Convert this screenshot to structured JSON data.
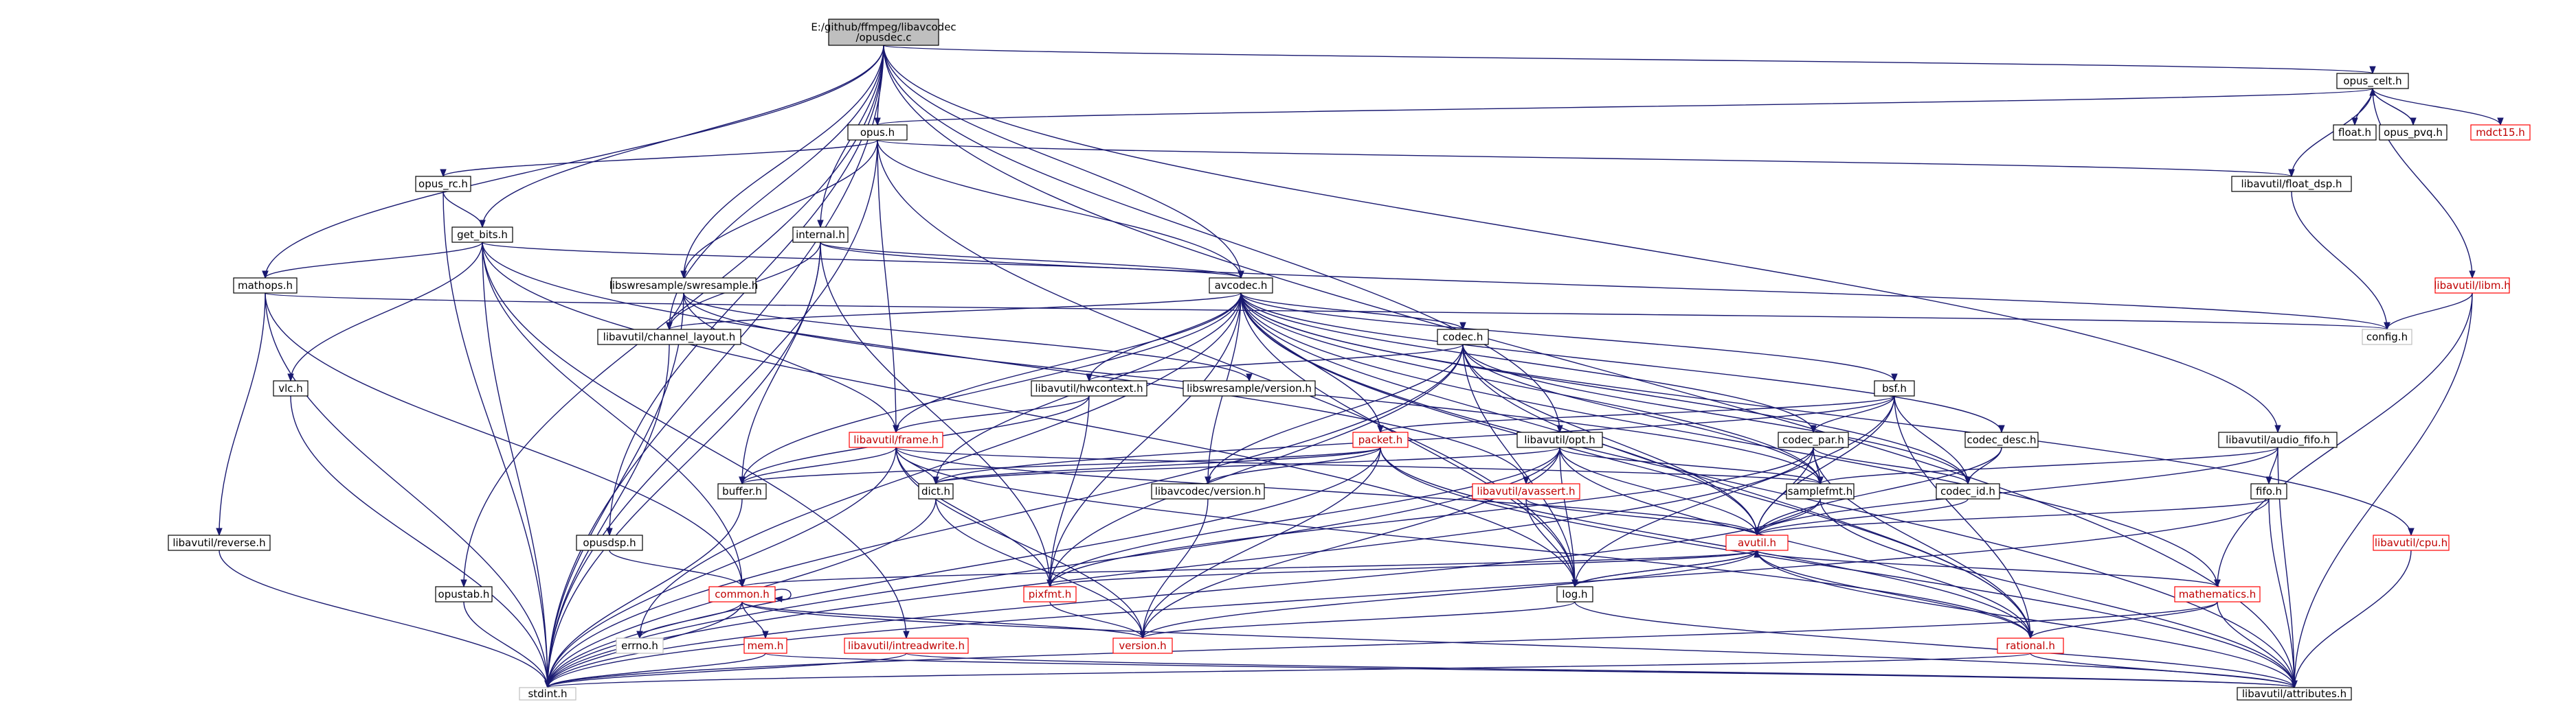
{
  "colors": {
    "edge": "#191970",
    "node_border": "#000000",
    "incomplete_border": "#ff0000",
    "root_fill": "#bfbfbf",
    "gray_border": "#bfbfbf",
    "background": "#ffffff"
  },
  "nodes": [
    {
      "id": "root",
      "lines": [
        "E:/github/ffmpeg/libavcodec",
        "/opusdec.c"
      ],
      "kind": "root"
    },
    {
      "id": "opus_celt",
      "lines": [
        "opus_celt.h"
      ],
      "kind": "normal"
    },
    {
      "id": "float",
      "lines": [
        "float.h"
      ],
      "kind": "normal"
    },
    {
      "id": "opus_pvq",
      "lines": [
        "opus_pvq.h"
      ],
      "kind": "normal"
    },
    {
      "id": "mdct15",
      "lines": [
        "mdct15.h"
      ],
      "kind": "incomplete"
    },
    {
      "id": "opus",
      "lines": [
        "opus.h"
      ],
      "kind": "normal"
    },
    {
      "id": "float_dsp",
      "lines": [
        "libavutil/float_dsp.h"
      ],
      "kind": "normal"
    },
    {
      "id": "libm",
      "lines": [
        "libavutil/libm.h"
      ],
      "kind": "incomplete"
    },
    {
      "id": "config",
      "lines": [
        "config.h"
      ],
      "kind": "gray"
    },
    {
      "id": "opus_rc",
      "lines": [
        "opus_rc.h"
      ],
      "kind": "normal"
    },
    {
      "id": "internal",
      "lines": [
        "internal.h"
      ],
      "kind": "normal"
    },
    {
      "id": "get_bits",
      "lines": [
        "get_bits.h"
      ],
      "kind": "normal"
    },
    {
      "id": "mathops",
      "lines": [
        "mathops.h"
      ],
      "kind": "normal"
    },
    {
      "id": "swresample",
      "lines": [
        "libswresample/swresample.h"
      ],
      "kind": "normal"
    },
    {
      "id": "avcodec",
      "lines": [
        "avcodec.h"
      ],
      "kind": "normal"
    },
    {
      "id": "channel_layout",
      "lines": [
        "libavutil/channel_layout.h"
      ],
      "kind": "normal"
    },
    {
      "id": "codec",
      "lines": [
        "codec.h"
      ],
      "kind": "normal"
    },
    {
      "id": "hwcontext",
      "lines": [
        "libavutil/hwcontext.h"
      ],
      "kind": "normal"
    },
    {
      "id": "swr_version",
      "lines": [
        "libswresample/version.h"
      ],
      "kind": "normal"
    },
    {
      "id": "bsf",
      "lines": [
        "bsf.h"
      ],
      "kind": "normal"
    },
    {
      "id": "vlc",
      "lines": [
        "vlc.h"
      ],
      "kind": "normal"
    },
    {
      "id": "frame",
      "lines": [
        "libavutil/frame.h"
      ],
      "kind": "incomplete"
    },
    {
      "id": "packet",
      "lines": [
        "packet.h"
      ],
      "kind": "incomplete"
    },
    {
      "id": "opt",
      "lines": [
        "libavutil/opt.h"
      ],
      "kind": "normal"
    },
    {
      "id": "codec_par",
      "lines": [
        "codec_par.h"
      ],
      "kind": "normal"
    },
    {
      "id": "codec_desc",
      "lines": [
        "codec_desc.h"
      ],
      "kind": "normal"
    },
    {
      "id": "audio_fifo",
      "lines": [
        "libavutil/audio_fifo.h"
      ],
      "kind": "normal"
    },
    {
      "id": "buffer",
      "lines": [
        "buffer.h"
      ],
      "kind": "normal"
    },
    {
      "id": "dict",
      "lines": [
        "dict.h"
      ],
      "kind": "normal"
    },
    {
      "id": "avc_version",
      "lines": [
        "libavcodec/version.h"
      ],
      "kind": "normal"
    },
    {
      "id": "avassert",
      "lines": [
        "libavutil/avassert.h"
      ],
      "kind": "incomplete"
    },
    {
      "id": "samplefmt",
      "lines": [
        "samplefmt.h"
      ],
      "kind": "normal"
    },
    {
      "id": "codec_id",
      "lines": [
        "codec_id.h"
      ],
      "kind": "normal"
    },
    {
      "id": "fifo",
      "lines": [
        "fifo.h"
      ],
      "kind": "normal"
    },
    {
      "id": "reverse",
      "lines": [
        "libavutil/reverse.h"
      ],
      "kind": "normal"
    },
    {
      "id": "opusdsp",
      "lines": [
        "opusdsp.h"
      ],
      "kind": "normal"
    },
    {
      "id": "avutil",
      "lines": [
        "avutil.h"
      ],
      "kind": "incomplete"
    },
    {
      "id": "cpu",
      "lines": [
        "libavutil/cpu.h"
      ],
      "kind": "incomplete"
    },
    {
      "id": "opustab",
      "lines": [
        "opustab.h"
      ],
      "kind": "normal"
    },
    {
      "id": "common",
      "lines": [
        "common.h"
      ],
      "kind": "incomplete"
    },
    {
      "id": "pixfmt",
      "lines": [
        "pixfmt.h"
      ],
      "kind": "incomplete"
    },
    {
      "id": "log",
      "lines": [
        "log.h"
      ],
      "kind": "normal"
    },
    {
      "id": "mathematics",
      "lines": [
        "mathematics.h"
      ],
      "kind": "incomplete"
    },
    {
      "id": "errno",
      "lines": [
        "errno.h"
      ],
      "kind": "gray"
    },
    {
      "id": "mem",
      "lines": [
        "mem.h"
      ],
      "kind": "incomplete"
    },
    {
      "id": "intreadwrite",
      "lines": [
        "libavutil/intreadwrite.h"
      ],
      "kind": "incomplete"
    },
    {
      "id": "version",
      "lines": [
        "version.h"
      ],
      "kind": "incomplete"
    },
    {
      "id": "rational",
      "lines": [
        "rational.h"
      ],
      "kind": "incomplete"
    },
    {
      "id": "stdint",
      "lines": [
        "stdint.h"
      ],
      "kind": "gray"
    },
    {
      "id": "attributes",
      "lines": [
        "libavutil/attributes.h"
      ],
      "kind": "normal"
    }
  ],
  "edges": [
    [
      "root",
      "opus_celt"
    ],
    [
      "root",
      "opus"
    ],
    [
      "root",
      "get_bits"
    ],
    [
      "root",
      "mathops"
    ],
    [
      "root",
      "swresample"
    ],
    [
      "root",
      "avcodec"
    ],
    [
      "root",
      "internal"
    ],
    [
      "root",
      "channel_layout"
    ],
    [
      "root",
      "opusdsp"
    ],
    [
      "root",
      "opustab"
    ],
    [
      "root",
      "opt"
    ],
    [
      "root",
      "audio_fifo"
    ],
    [
      "root",
      "stdint"
    ],
    [
      "root",
      "attributes"
    ],
    [
      "opus_celt",
      "float"
    ],
    [
      "opus_celt",
      "opus_pvq"
    ],
    [
      "opus_celt",
      "mdct15"
    ],
    [
      "opus_celt",
      "libm"
    ],
    [
      "opus_celt",
      "float_dsp"
    ],
    [
      "opus_celt",
      "opus"
    ],
    [
      "opus_pvq",
      "opus_celt"
    ],
    [
      "opus",
      "opus_rc"
    ],
    [
      "opus",
      "float_dsp"
    ],
    [
      "opus",
      "avcodec"
    ],
    [
      "opus",
      "swresample"
    ],
    [
      "opus",
      "frame"
    ],
    [
      "opus",
      "stdint"
    ],
    [
      "opus",
      "log"
    ],
    [
      "float_dsp",
      "config"
    ],
    [
      "libm",
      "config"
    ],
    [
      "libm",
      "attributes"
    ],
    [
      "libm",
      "mathematics"
    ],
    [
      "opus_rc",
      "get_bits"
    ],
    [
      "opus_rc",
      "stdint"
    ],
    [
      "internal",
      "avcodec"
    ],
    [
      "internal",
      "config"
    ],
    [
      "internal",
      "channel_layout"
    ],
    [
      "internal",
      "buffer"
    ],
    [
      "internal",
      "pixfmt"
    ],
    [
      "internal",
      "stdint"
    ],
    [
      "get_bits",
      "mathops"
    ],
    [
      "get_bits",
      "vlc"
    ],
    [
      "get_bits",
      "avcodec"
    ],
    [
      "get_bits",
      "common"
    ],
    [
      "get_bits",
      "intreadwrite"
    ],
    [
      "get_bits",
      "log"
    ],
    [
      "get_bits",
      "avassert"
    ],
    [
      "get_bits",
      "stdint"
    ],
    [
      "mathops",
      "common"
    ],
    [
      "mathops",
      "reverse"
    ],
    [
      "mathops",
      "config"
    ],
    [
      "mathops",
      "stdint"
    ],
    [
      "swresample",
      "channel_layout"
    ],
    [
      "swresample",
      "frame"
    ],
    [
      "swresample",
      "swr_version"
    ],
    [
      "swresample",
      "samplefmt"
    ],
    [
      "swresample",
      "stdint"
    ],
    [
      "avcodec",
      "codec"
    ],
    [
      "avcodec",
      "hwcontext"
    ],
    [
      "avcodec",
      "bsf"
    ],
    [
      "avcodec",
      "codec_par"
    ],
    [
      "avcodec",
      "codec_desc"
    ],
    [
      "avcodec",
      "codec_id"
    ],
    [
      "avcodec",
      "packet"
    ],
    [
      "avcodec",
      "frame"
    ],
    [
      "avcodec",
      "buffer"
    ],
    [
      "avcodec",
      "dict"
    ],
    [
      "avcodec",
      "avc_version"
    ],
    [
      "avcodec",
      "samplefmt"
    ],
    [
      "avcodec",
      "avutil"
    ],
    [
      "avcodec",
      "pixfmt"
    ],
    [
      "avcodec",
      "rational"
    ],
    [
      "avcodec",
      "attributes"
    ],
    [
      "avcodec",
      "log"
    ],
    [
      "avcodec",
      "errno"
    ],
    [
      "avcodec",
      "channel_layout"
    ],
    [
      "avcodec",
      "cpu"
    ],
    [
      "avcodec",
      "mathematics"
    ],
    [
      "channel_layout",
      "stdint"
    ],
    [
      "codec",
      "hwcontext"
    ],
    [
      "codec",
      "codec_id"
    ],
    [
      "codec",
      "avc_version"
    ],
    [
      "codec",
      "samplefmt"
    ],
    [
      "codec",
      "avutil"
    ],
    [
      "codec",
      "log"
    ],
    [
      "codec",
      "pixfmt"
    ],
    [
      "codec",
      "rational"
    ],
    [
      "codec",
      "stdint"
    ],
    [
      "hwcontext",
      "frame"
    ],
    [
      "hwcontext",
      "buffer"
    ],
    [
      "hwcontext",
      "pixfmt"
    ],
    [
      "bsf",
      "codec_par"
    ],
    [
      "bsf",
      "codec_id"
    ],
    [
      "bsf",
      "packet"
    ],
    [
      "bsf",
      "dict"
    ],
    [
      "bsf",
      "log"
    ],
    [
      "bsf",
      "rational"
    ],
    [
      "bsf",
      "avutil"
    ],
    [
      "vlc",
      "stdint"
    ],
    [
      "frame",
      "buffer"
    ],
    [
      "frame",
      "dict"
    ],
    [
      "frame",
      "samplefmt"
    ],
    [
      "frame",
      "avutil"
    ],
    [
      "frame",
      "pixfmt"
    ],
    [
      "frame",
      "rational"
    ],
    [
      "frame",
      "version"
    ],
    [
      "frame",
      "stdint"
    ],
    [
      "packet",
      "buffer"
    ],
    [
      "packet",
      "dict"
    ],
    [
      "packet",
      "avc_version"
    ],
    [
      "packet",
      "rational"
    ],
    [
      "packet",
      "version"
    ],
    [
      "packet",
      "stdint"
    ],
    [
      "packet",
      "attributes"
    ],
    [
      "opt",
      "dict"
    ],
    [
      "opt",
      "samplefmt"
    ],
    [
      "opt",
      "avutil"
    ],
    [
      "opt",
      "log"
    ],
    [
      "opt",
      "pixfmt"
    ],
    [
      "opt",
      "rational"
    ],
    [
      "opt",
      "version"
    ],
    [
      "opt",
      "stdint"
    ],
    [
      "codec_par",
      "avutil"
    ],
    [
      "codec_par",
      "codec_id"
    ],
    [
      "codec_par",
      "pixfmt"
    ],
    [
      "codec_par",
      "rational"
    ],
    [
      "codec_par",
      "samplefmt"
    ],
    [
      "codec_par",
      "stdint"
    ],
    [
      "codec_desc",
      "codec_id"
    ],
    [
      "codec_desc",
      "avutil"
    ],
    [
      "audio_fifo",
      "fifo"
    ],
    [
      "audio_fifo",
      "samplefmt"
    ],
    [
      "audio_fifo",
      "avutil"
    ],
    [
      "audio_fifo",
      "attributes"
    ],
    [
      "buffer",
      "stdint"
    ],
    [
      "dict",
      "stdint"
    ],
    [
      "dict",
      "version"
    ],
    [
      "avc_version",
      "version"
    ],
    [
      "avassert",
      "avutil"
    ],
    [
      "avassert",
      "log"
    ],
    [
      "samplefmt",
      "avutil"
    ],
    [
      "samplefmt",
      "attributes"
    ],
    [
      "samplefmt",
      "stdint"
    ],
    [
      "codec_id",
      "avutil"
    ],
    [
      "fifo",
      "avutil"
    ],
    [
      "fifo",
      "attributes"
    ],
    [
      "fifo",
      "stdint"
    ],
    [
      "reverse",
      "stdint"
    ],
    [
      "opusdsp",
      "common"
    ],
    [
      "avutil",
      "common"
    ],
    [
      "avutil",
      "rational"
    ],
    [
      "avutil",
      "version"
    ],
    [
      "avutil",
      "mathematics"
    ],
    [
      "avutil",
      "log"
    ],
    [
      "avutil",
      "pixfmt"
    ],
    [
      "avutil",
      "attributes"
    ],
    [
      "cpu",
      "attributes"
    ],
    [
      "opustab",
      "stdint"
    ],
    [
      "common",
      "common"
    ],
    [
      "common",
      "errno"
    ],
    [
      "common",
      "mem"
    ],
    [
      "common",
      "version"
    ],
    [
      "common",
      "stdint"
    ],
    [
      "common",
      "attributes"
    ],
    [
      "pixfmt",
      "version"
    ],
    [
      "log",
      "avutil"
    ],
    [
      "log",
      "version"
    ],
    [
      "log",
      "attributes"
    ],
    [
      "mathematics",
      "rational"
    ],
    [
      "mathematics",
      "attributes"
    ],
    [
      "mathematics",
      "stdint"
    ],
    [
      "mem",
      "attributes"
    ],
    [
      "mem",
      "stdint"
    ],
    [
      "intreadwrite",
      "stdint"
    ],
    [
      "intreadwrite",
      "attributes"
    ],
    [
      "rational",
      "attributes"
    ],
    [
      "rational",
      "stdint"
    ]
  ]
}
